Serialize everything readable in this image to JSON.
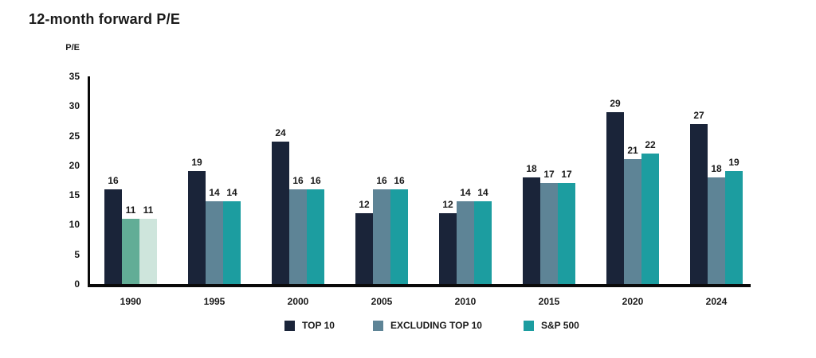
{
  "title": "12-month forward P/E",
  "colors": {
    "top10": "#1A2439",
    "excluding_top10": "#5E8496",
    "sp500": "#1C9DA0",
    "highlight_1990_excluding": "#62AD96",
    "highlight_1990_sp500": "#CEE5DC",
    "axis": "#0A0A0A",
    "text": "#1A1A1A",
    "background": "#FFFFFF"
  },
  "chart_data": {
    "type": "bar",
    "title": "12-month forward P/E",
    "xlabel": "",
    "ylabel": "P/E",
    "categories": [
      "1990",
      "1995",
      "2000",
      "2005",
      "2010",
      "2015",
      "2020",
      "2024"
    ],
    "series": [
      {
        "name": "TOP 10",
        "color": "#1A2439",
        "values": [
          16,
          19,
          24,
          12,
          12,
          18,
          29,
          27
        ]
      },
      {
        "name": "EXCLUDING TOP 10",
        "color": "#5E8496",
        "values": [
          11,
          14,
          16,
          16,
          14,
          17,
          21,
          18
        ]
      },
      {
        "name": "S&P 500",
        "color": "#1C9DA0",
        "values": [
          11,
          14,
          16,
          16,
          14,
          17,
          22,
          19
        ]
      }
    ],
    "color_overrides": {
      "1990": {
        "1": "#62AD96",
        "2": "#CEE5DC"
      }
    },
    "ylim": [
      0,
      35
    ],
    "yticks": [
      0,
      5,
      10,
      15,
      20,
      25,
      30,
      35
    ],
    "grid": false,
    "value_labels": true,
    "legend_position": "bottom"
  }
}
